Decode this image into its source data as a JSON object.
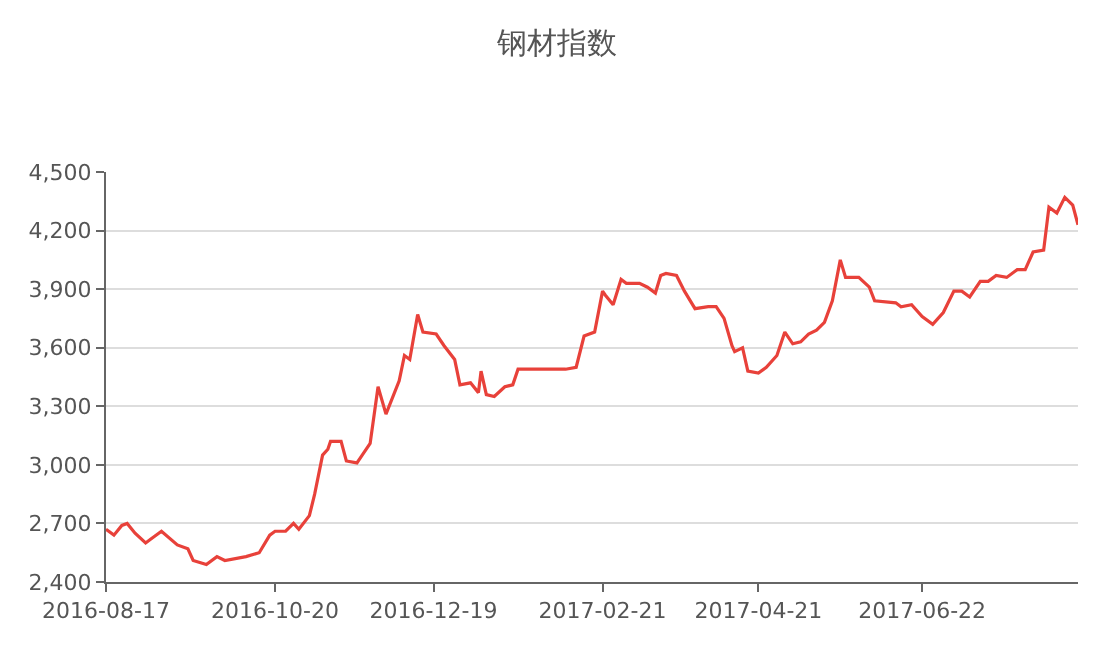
{
  "chart_data": {
    "type": "line",
    "title": "钢材指数",
    "x": [
      "2016-08-17",
      "2016-08-20",
      "2016-08-23",
      "2016-08-25",
      "2016-08-28",
      "2016-09-01",
      "2016-09-03",
      "2016-09-07",
      "2016-09-13",
      "2016-09-17",
      "2016-09-19",
      "2016-09-24",
      "2016-09-28",
      "2016-10-01",
      "2016-10-09",
      "2016-10-14",
      "2016-10-18",
      "2016-10-20",
      "2016-10-24",
      "2016-10-27",
      "2016-10-29",
      "2016-11-02",
      "2016-11-04",
      "2016-11-07",
      "2016-11-09",
      "2016-11-10",
      "2016-11-14",
      "2016-11-16",
      "2016-11-20",
      "2016-11-22",
      "2016-11-25",
      "2016-11-28",
      "2016-12-01",
      "2016-12-06",
      "2016-12-08",
      "2016-12-10",
      "2016-12-13",
      "2016-12-15",
      "2016-12-20",
      "2016-12-23",
      "2016-12-27",
      "2016-12-29",
      "2017-01-02",
      "2017-01-05",
      "2017-01-06",
      "2017-01-08",
      "2017-01-11",
      "2017-01-15",
      "2017-01-18",
      "2017-01-20",
      "2017-02-07",
      "2017-02-11",
      "2017-02-14",
      "2017-02-18",
      "2017-02-21",
      "2017-02-22",
      "2017-02-25",
      "2017-02-28",
      "2017-03-02",
      "2017-03-07",
      "2017-03-10",
      "2017-03-13",
      "2017-03-15",
      "2017-03-17",
      "2017-03-21",
      "2017-03-24",
      "2017-03-28",
      "2017-04-02",
      "2017-04-05",
      "2017-04-08",
      "2017-04-11",
      "2017-04-12",
      "2017-04-15",
      "2017-04-17",
      "2017-04-21",
      "2017-04-24",
      "2017-04-28",
      "2017-05-01",
      "2017-05-04",
      "2017-05-07",
      "2017-05-10",
      "2017-05-13",
      "2017-05-16",
      "2017-05-19",
      "2017-05-22",
      "2017-05-24",
      "2017-05-29",
      "2017-06-02",
      "2017-06-04",
      "2017-06-12",
      "2017-06-14",
      "2017-06-18",
      "2017-06-22",
      "2017-06-26",
      "2017-06-30",
      "2017-07-04",
      "2017-07-07",
      "2017-07-10",
      "2017-07-14",
      "2017-07-17",
      "2017-07-20",
      "2017-07-24",
      "2017-07-28",
      "2017-07-31",
      "2017-08-03",
      "2017-08-07",
      "2017-08-09",
      "2017-08-12",
      "2017-08-15",
      "2017-08-18",
      "2017-08-20"
    ],
    "series": [
      {
        "color": "#e8413a",
        "values": [
          2670,
          2640,
          2690,
          2700,
          2650,
          2600,
          2620,
          2660,
          2590,
          2570,
          2510,
          2490,
          2530,
          2510,
          2530,
          2550,
          2640,
          2660,
          2660,
          2700,
          2670,
          2740,
          2850,
          3050,
          3080,
          3120,
          3120,
          3020,
          3010,
          3050,
          3110,
          3400,
          3260,
          3430,
          3560,
          3540,
          3770,
          3680,
          3670,
          3610,
          3540,
          3410,
          3420,
          3370,
          3480,
          3360,
          3350,
          3400,
          3410,
          3490,
          3490,
          3500,
          3660,
          3680,
          3890,
          3870,
          3820,
          3950,
          3930,
          3930,
          3910,
          3880,
          3970,
          3980,
          3970,
          3890,
          3800,
          3810,
          3810,
          3750,
          3610,
          3580,
          3600,
          3480,
          3470,
          3500,
          3560,
          3680,
          3620,
          3630,
          3670,
          3690,
          3730,
          3840,
          4050,
          3960,
          3960,
          3910,
          3840,
          3830,
          3810,
          3820,
          3760,
          3720,
          3780,
          3890,
          3890,
          3860,
          3940,
          3940,
          3970,
          3960,
          4000,
          4000,
          4090,
          4100,
          4320,
          4290,
          4370,
          4330,
          4230
        ]
      }
    ],
    "xlim": [
      "2016-08-17",
      "2017-08-20"
    ],
    "xticks": [
      {
        "value": "2016-08-17",
        "label": "2016-08-17"
      },
      {
        "value": "2016-10-20",
        "label": "2016-10-20"
      },
      {
        "value": "2016-12-19",
        "label": "2016-12-19"
      },
      {
        "value": "2017-02-21",
        "label": "2017-02-21"
      },
      {
        "value": "2017-04-21",
        "label": "2017-04-21"
      },
      {
        "value": "2017-06-22",
        "label": "2017-06-22"
      }
    ],
    "ylim": [
      2400,
      4500
    ],
    "yticks": [
      {
        "value": 2400,
        "label": "2,400"
      },
      {
        "value": 2700,
        "label": "2,700"
      },
      {
        "value": 3000,
        "label": "3,000"
      },
      {
        "value": 3300,
        "label": "3,300"
      },
      {
        "value": 3600,
        "label": "3,600"
      },
      {
        "value": 3900,
        "label": "3,900"
      },
      {
        "value": 4200,
        "label": "4,200"
      },
      {
        "value": 4500,
        "label": "4,500"
      }
    ],
    "grid": "y"
  }
}
